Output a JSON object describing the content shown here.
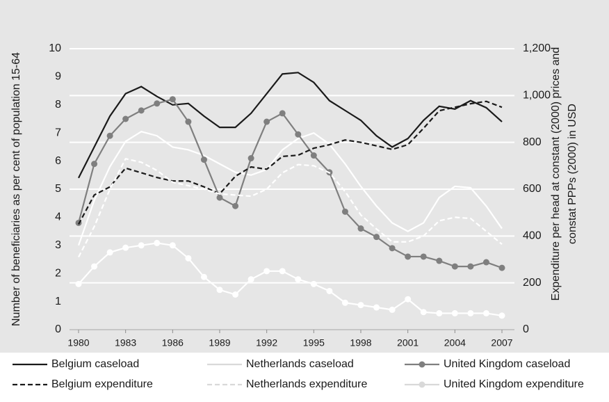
{
  "chart_data": {
    "type": "line",
    "y_label": "Number of beneficiaries as per cent of population 15-64",
    "y2_label": [
      "Expenditure per head at constant (2000) prices and",
      "constat PPPs (2000) in USD"
    ],
    "x": [
      1980,
      1981,
      1982,
      1983,
      1984,
      1985,
      1986,
      1987,
      1988,
      1989,
      1990,
      1991,
      1992,
      1993,
      1994,
      1995,
      1996,
      1997,
      1998,
      1999,
      2000,
      2001,
      2002,
      2003,
      2004,
      2005,
      2006,
      2007
    ],
    "xlim": [
      1980,
      2007
    ],
    "xticks": [
      1980,
      1983,
      1986,
      1989,
      1992,
      1995,
      1998,
      2001,
      2004,
      2007
    ],
    "ylim": [
      0,
      10
    ],
    "yticks": [
      0,
      1,
      2,
      3,
      4,
      5,
      6,
      7,
      8,
      9,
      10
    ],
    "y2lim": [
      0,
      1200
    ],
    "y2ticks": [
      0,
      200,
      400,
      600,
      {
        "value": 800,
        "label": "800"
      },
      {
        "value": 1000,
        "label": "1,000"
      },
      {
        "value": 1200,
        "label": "1,200"
      }
    ],
    "grid": true,
    "series": [
      {
        "name": "Belgium caseload",
        "color": "#1a1a1a",
        "dash": false,
        "marker": false,
        "axis": "y",
        "values": [
          5.4,
          6.5,
          7.6,
          8.4,
          8.65,
          8.3,
          8.0,
          8.05,
          7.6,
          7.2,
          7.2,
          7.7,
          8.4,
          9.1,
          9.15,
          8.8,
          8.15,
          7.8,
          7.45,
          6.9,
          6.5,
          6.8,
          7.45,
          7.95,
          7.85,
          8.15,
          7.9,
          7.4
        ]
      },
      {
        "name": "Netherlands caseload",
        "color": "#ffffff",
        "dash": false,
        "marker": false,
        "axis": "y",
        "values": [
          3.0,
          4.6,
          5.8,
          6.7,
          7.05,
          6.9,
          6.5,
          6.4,
          6.2,
          5.9,
          5.6,
          5.5,
          5.7,
          6.4,
          6.8,
          7.0,
          6.6,
          5.9,
          5.1,
          4.4,
          3.8,
          3.5,
          3.8,
          4.7,
          5.1,
          5.05,
          4.4,
          3.6
        ]
      },
      {
        "name": "United Kingdom caseload",
        "color": "#7f7f7f",
        "dash": false,
        "marker": true,
        "axis": "y",
        "values": [
          3.8,
          5.9,
          6.9,
          7.5,
          7.8,
          8.05,
          8.2,
          7.4,
          6.05,
          4.7,
          4.4,
          6.1,
          7.4,
          7.7,
          6.95,
          6.2,
          5.6,
          4.2,
          3.6,
          3.3,
          2.9,
          2.6,
          2.6,
          2.45,
          2.25,
          2.25,
          2.4,
          2.2
        ]
      },
      {
        "name": "Belgium expenditure",
        "color": "#1a1a1a",
        "dash": true,
        "marker": false,
        "axis": "y2",
        "values": [
          450,
          575,
          610,
          690,
          670,
          650,
          635,
          635,
          610,
          580,
          655,
          695,
          685,
          740,
          745,
          775,
          790,
          810,
          800,
          785,
          770,
          790,
          860,
          935,
          950,
          965,
          975,
          950
        ]
      },
      {
        "name": "Netherlands expenditure",
        "color": "#ffffff",
        "dash": true,
        "marker": false,
        "axis": "y2",
        "values": [
          310,
          440,
          600,
          730,
          715,
          680,
          630,
          615,
          600,
          580,
          575,
          570,
          600,
          670,
          705,
          700,
          670,
          590,
          490,
          430,
          375,
          375,
          400,
          465,
          480,
          475,
          420,
          365
        ]
      },
      {
        "name": "United Kingdom expenditure",
        "color": "#ffffff",
        "dash": false,
        "marker": true,
        "axis": "y2",
        "values": [
          195,
          270,
          330,
          350,
          360,
          370,
          360,
          305,
          225,
          170,
          150,
          215,
          250,
          250,
          215,
          195,
          165,
          115,
          105,
          95,
          85,
          130,
          75,
          70,
          70,
          70,
          70,
          60
        ]
      }
    ]
  }
}
